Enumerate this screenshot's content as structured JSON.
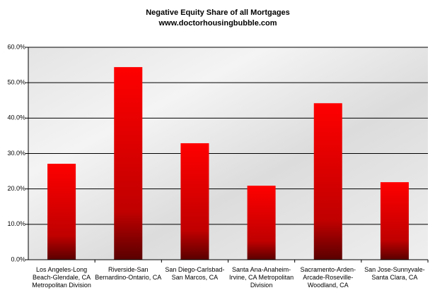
{
  "chart_data": {
    "type": "bar",
    "title": "Negative Equity Share of all Mortgages",
    "subtitle": "www.doctorhousingbubble.com",
    "categories": [
      "Los Angeles-Long\nBeach-Glendale, CA\nMetropolitan Division",
      "Riverside-San\nBernardino-Ontario, CA",
      "San Diego-Carlsbad-\nSan Marcos, CA",
      "Santa Ana-Anaheim-\nIrvine, CA Metropolitan\nDivision",
      "Sacramento-Arden-\nArcade-Roseville-\nWoodland, CA",
      "San Jose-Sunnyvale-\nSanta Clara, CA"
    ],
    "values": [
      27.1,
      54.4,
      32.9,
      20.9,
      44.2,
      21.9
    ],
    "color": "#ff0000",
    "ylim": [
      0,
      60
    ],
    "yticks": [
      {
        "value": 0,
        "label": "0.0%"
      },
      {
        "value": 10,
        "label": "10.0%"
      },
      {
        "value": 20,
        "label": "20.0%"
      },
      {
        "value": 30,
        "label": "30.0%"
      },
      {
        "value": 40,
        "label": "40.0%"
      },
      {
        "value": 50,
        "label": "50.0%"
      },
      {
        "value": 60,
        "label": "60.0%"
      }
    ],
    "grid": true
  }
}
